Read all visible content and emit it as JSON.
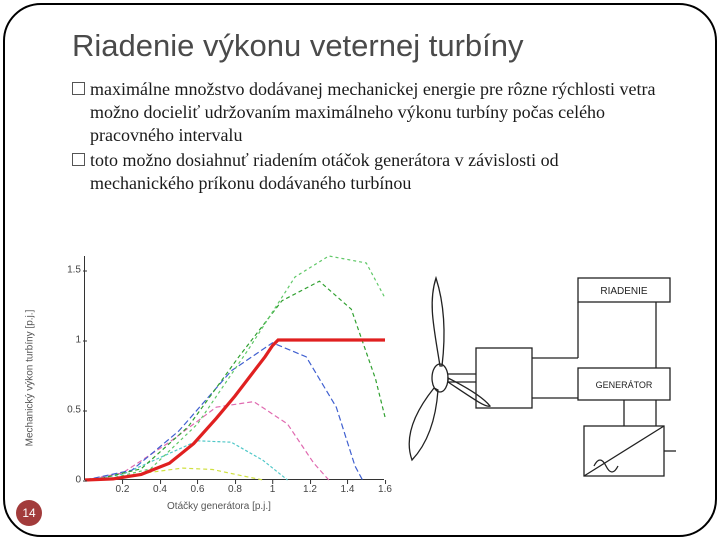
{
  "title": "Riadenie výkonu veternej turbíny",
  "bullets": [
    "maximálne množstvo dodávanej mechanickej energie pre rôzne rýchlosti vetra možno docieliť udržovaním maximálneho výkonu turbíny počas celého pracovného intervalu",
    "toto možno dosiahnuť riadením otáčok generátora v závislosti od mechanického príkonu dodávaného turbínou"
  ],
  "page_number": "14",
  "chart": {
    "type": "line",
    "ylabel": "Mechanický výkon turbíny [p.j.]",
    "xlabel": "Otáčky generátora [p.j.]",
    "xlim": [
      0,
      1.6
    ],
    "ylim": [
      0,
      1.6
    ],
    "xticks": [
      "0.2",
      "0.4",
      "0.6",
      "0.8",
      "1",
      "1.2",
      "1.4",
      "1.6"
    ],
    "yticks": [
      "0",
      "0.5",
      "1",
      "1.5"
    ],
    "ytick_positions": [
      0,
      0.5,
      1.0,
      1.5
    ],
    "xtick_positions": [
      0.2,
      0.4,
      0.6,
      0.8,
      1.0,
      1.2,
      1.4,
      1.6
    ],
    "background_color": "#ffffff",
    "axis_color": "#333333",
    "curves": [
      {
        "color": "#d0e040",
        "dash": "4 3",
        "width": 1.2,
        "points": [
          [
            0,
            0
          ],
          [
            0.18,
            0.018
          ],
          [
            0.35,
            0.055
          ],
          [
            0.52,
            0.085
          ],
          [
            0.68,
            0.075
          ],
          [
            0.82,
            0.035
          ],
          [
            0.95,
            0
          ]
        ]
      },
      {
        "color": "#50c8c8",
        "dash": "3 2",
        "width": 1.2,
        "points": [
          [
            0,
            0
          ],
          [
            0.2,
            0.04
          ],
          [
            0.4,
            0.16
          ],
          [
            0.6,
            0.28
          ],
          [
            0.78,
            0.27
          ],
          [
            0.95,
            0.14
          ],
          [
            1.08,
            0
          ]
        ]
      },
      {
        "color": "#e06ab0",
        "dash": "5 3",
        "width": 1.2,
        "points": [
          [
            0,
            0
          ],
          [
            0.2,
            0.05
          ],
          [
            0.45,
            0.27
          ],
          [
            0.7,
            0.52
          ],
          [
            0.9,
            0.56
          ],
          [
            1.08,
            0.4
          ],
          [
            1.22,
            0.12
          ],
          [
            1.3,
            0
          ]
        ]
      },
      {
        "color": "#4060d0",
        "dash": "6 3",
        "width": 1.2,
        "points": [
          [
            0,
            0
          ],
          [
            0.25,
            0.07
          ],
          [
            0.5,
            0.35
          ],
          [
            0.78,
            0.78
          ],
          [
            1.0,
            0.98
          ],
          [
            1.18,
            0.88
          ],
          [
            1.34,
            0.52
          ],
          [
            1.44,
            0.1
          ],
          [
            1.48,
            0
          ]
        ]
      },
      {
        "color": "#30a030",
        "dash": "4 3",
        "width": 1.2,
        "points": [
          [
            0.05,
            0
          ],
          [
            0.3,
            0.08
          ],
          [
            0.55,
            0.38
          ],
          [
            0.82,
            0.88
          ],
          [
            1.05,
            1.28
          ],
          [
            1.25,
            1.42
          ],
          [
            1.42,
            1.22
          ],
          [
            1.55,
            0.72
          ],
          [
            1.6,
            0.45
          ]
        ]
      },
      {
        "color": "#60c868",
        "dash": "3 3",
        "width": 1.2,
        "points": [
          [
            0.1,
            0
          ],
          [
            0.35,
            0.08
          ],
          [
            0.6,
            0.4
          ],
          [
            0.88,
            0.95
          ],
          [
            1.12,
            1.45
          ],
          [
            1.3,
            1.6
          ],
          [
            1.5,
            1.55
          ],
          [
            1.6,
            1.3
          ]
        ]
      }
    ],
    "envelope": {
      "color": "#e02020",
      "width": 3.2,
      "dash": "",
      "points": [
        [
          0,
          0
        ],
        [
          0.15,
          0.008
        ],
        [
          0.3,
          0.04
        ],
        [
          0.45,
          0.12
        ],
        [
          0.58,
          0.26
        ],
        [
          0.7,
          0.44
        ],
        [
          0.8,
          0.6
        ],
        [
          0.88,
          0.74
        ],
        [
          0.96,
          0.88
        ],
        [
          1.0,
          0.96
        ],
        [
          1.03,
          1.0
        ],
        [
          1.6,
          1.0
        ]
      ]
    }
  },
  "diagram": {
    "labels": {
      "control": "RIADENIE",
      "generator": "GENERÁTOR"
    },
    "line_color": "#222222",
    "line_width": 1.3
  }
}
